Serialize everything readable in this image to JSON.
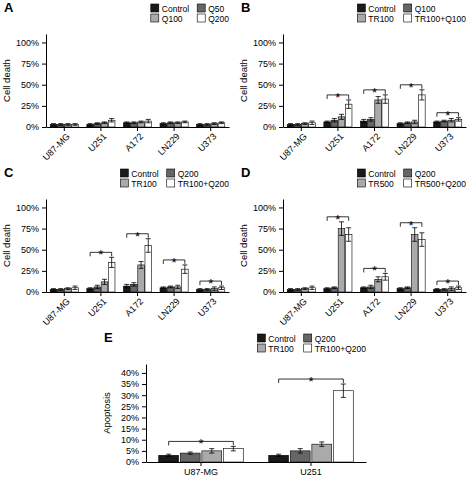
{
  "chart_data": [
    {
      "type": "bar",
      "title": "A",
      "ylabel": "Cell death",
      "categories": [
        "U87-MG",
        "U251",
        "A172",
        "LN229",
        "U373"
      ],
      "series": [
        {
          "name": "Control",
          "color": "#1a1a1a",
          "values": [
            3,
            3,
            5,
            4,
            3
          ],
          "errors": [
            1,
            1,
            1,
            1,
            1
          ]
        },
        {
          "name": "Q50",
          "color": "#666666",
          "values": [
            3,
            4,
            5,
            5,
            3
          ],
          "errors": [
            1,
            1,
            1,
            1,
            1
          ]
        },
        {
          "name": "Q100",
          "color": "#aaaaaa",
          "values": [
            3,
            5,
            6,
            5,
            4
          ],
          "errors": [
            1,
            1,
            1,
            1,
            1
          ]
        },
        {
          "name": "Q200",
          "color": "#ffffff",
          "values": [
            3,
            8,
            7,
            6,
            5
          ],
          "errors": [
            1,
            2,
            2,
            1,
            1
          ]
        }
      ],
      "ylim": [
        0,
        110
      ],
      "yticks": [
        {
          "value": 0,
          "label": "0%"
        },
        {
          "value": 25,
          "label": "25%"
        },
        {
          "value": 50,
          "label": "50%"
        },
        {
          "value": 75,
          "label": "75%"
        },
        {
          "value": 100,
          "label": "100%"
        }
      ],
      "grid": false,
      "legend": "upper right"
    },
    {
      "type": "bar",
      "title": "B",
      "ylabel": "Cell death",
      "categories": [
        "U87-MG",
        "U251",
        "A172",
        "LN229",
        "U373"
      ],
      "series": [
        {
          "name": "Control",
          "color": "#1a1a1a",
          "values": [
            3,
            6,
            7,
            4,
            6
          ],
          "errors": [
            1,
            1,
            2,
            1,
            1
          ]
        },
        {
          "name": "Q100",
          "color": "#666666",
          "values": [
            3,
            8,
            9,
            5,
            7
          ],
          "errors": [
            1,
            2,
            2,
            1,
            1
          ]
        },
        {
          "name": "TR100",
          "color": "#aaaaaa",
          "values": [
            4,
            12,
            32,
            6,
            8
          ],
          "errors": [
            1,
            3,
            4,
            2,
            2
          ]
        },
        {
          "name": "TR100+Q100",
          "color": "#ffffff",
          "values": [
            5,
            27,
            33,
            38,
            9
          ],
          "errors": [
            2,
            5,
            5,
            6,
            2
          ]
        }
      ],
      "ylim": [
        0,
        110
      ],
      "yticks": [
        {
          "value": 0,
          "label": "0%"
        },
        {
          "value": 25,
          "label": "25%"
        },
        {
          "value": 50,
          "label": "50%"
        },
        {
          "value": 75,
          "label": "75%"
        },
        {
          "value": 100,
          "label": "100%"
        }
      ],
      "grid": false,
      "legend": "upper right",
      "annotations": [
        {
          "text": "*",
          "category": "U251"
        },
        {
          "text": "*",
          "category": "A172"
        },
        {
          "text": "*",
          "category": "LN229"
        },
        {
          "text": "*",
          "category": "U373"
        }
      ]
    },
    {
      "type": "bar",
      "title": "C",
      "ylabel": "Cell death",
      "categories": [
        "U87-MG",
        "U251",
        "A172",
        "LN229",
        "U373"
      ],
      "series": [
        {
          "name": "Control",
          "color": "#1a1a1a",
          "values": [
            3,
            4,
            7,
            5,
            3
          ],
          "errors": [
            1,
            1,
            2,
            1,
            1
          ]
        },
        {
          "name": "Q200",
          "color": "#666666",
          "values": [
            3,
            6,
            9,
            6,
            3
          ],
          "errors": [
            1,
            2,
            2,
            1,
            1
          ]
        },
        {
          "name": "TR100",
          "color": "#aaaaaa",
          "values": [
            4,
            12,
            32,
            6,
            4
          ],
          "errors": [
            1,
            3,
            4,
            2,
            2
          ]
        },
        {
          "name": "TR100+Q200",
          "color": "#ffffff",
          "values": [
            5,
            35,
            55,
            27,
            5
          ],
          "errors": [
            2,
            6,
            8,
            5,
            2
          ]
        }
      ],
      "ylim": [
        0,
        110
      ],
      "yticks": [
        {
          "value": 0,
          "label": "0%"
        },
        {
          "value": 25,
          "label": "25%"
        },
        {
          "value": 50,
          "label": "50%"
        },
        {
          "value": 75,
          "label": "75%"
        },
        {
          "value": 100,
          "label": "100%"
        }
      ],
      "grid": false,
      "legend": "upper right",
      "annotations": [
        {
          "text": "*",
          "category": "U251"
        },
        {
          "text": "*",
          "category": "A172"
        },
        {
          "text": "*",
          "category": "LN229"
        },
        {
          "text": "*",
          "category": "U373"
        }
      ]
    },
    {
      "type": "bar",
      "title": "D",
      "ylabel": "Cell death",
      "categories": [
        "U87-MG",
        "U251",
        "A172",
        "LN229",
        "U373"
      ],
      "series": [
        {
          "name": "Control",
          "color": "#1a1a1a",
          "values": [
            3,
            4,
            5,
            4,
            3
          ],
          "errors": [
            1,
            1,
            1,
            1,
            1
          ]
        },
        {
          "name": "Q200",
          "color": "#666666",
          "values": [
            3,
            5,
            6,
            5,
            3
          ],
          "errors": [
            1,
            1,
            2,
            1,
            1
          ]
        },
        {
          "name": "TR500",
          "color": "#aaaaaa",
          "values": [
            4,
            75,
            15,
            68,
            4
          ],
          "errors": [
            1,
            8,
            3,
            8,
            2
          ]
        },
        {
          "name": "TR500+Q200",
          "color": "#ffffff",
          "values": [
            5,
            68,
            18,
            62,
            5
          ],
          "errors": [
            2,
            8,
            4,
            8,
            2
          ]
        }
      ],
      "ylim": [
        0,
        110
      ],
      "yticks": [
        {
          "value": 0,
          "label": "0%"
        },
        {
          "value": 25,
          "label": "25%"
        },
        {
          "value": 50,
          "label": "50%"
        },
        {
          "value": 75,
          "label": "75%"
        },
        {
          "value": 100,
          "label": "100%"
        }
      ],
      "grid": false,
      "legend": "upper right",
      "annotations": [
        {
          "text": "*",
          "category": "U251"
        },
        {
          "text": "*",
          "category": "A172"
        },
        {
          "text": "*",
          "category": "LN229"
        },
        {
          "text": "*",
          "category": "U373"
        }
      ]
    },
    {
      "type": "bar",
      "title": "E",
      "ylabel": "Apoptosis",
      "categories": [
        "U87-MG",
        "U251"
      ],
      "series": [
        {
          "name": "Control",
          "color": "#1a1a1a",
          "values": [
            3,
            3
          ],
          "errors": [
            0.5,
            0.5
          ]
        },
        {
          "name": "Q200",
          "color": "#666666",
          "values": [
            4,
            5
          ],
          "errors": [
            0.5,
            1
          ]
        },
        {
          "name": "TR100",
          "color": "#aaaaaa",
          "values": [
            5,
            8
          ],
          "errors": [
            1,
            1
          ]
        },
        {
          "name": "TR100+Q200",
          "color": "#ffffff",
          "values": [
            6,
            32
          ],
          "errors": [
            1,
            3
          ]
        }
      ],
      "ylim": [
        0,
        44
      ],
      "yticks": [
        {
          "value": 0,
          "label": "0%"
        },
        {
          "value": 5,
          "label": "5%"
        },
        {
          "value": 10,
          "label": "10%"
        },
        {
          "value": 15,
          "label": "15%"
        },
        {
          "value": 20,
          "label": "20%"
        },
        {
          "value": 25,
          "label": "25%"
        },
        {
          "value": 30,
          "label": "30%"
        },
        {
          "value": 35,
          "label": "35%"
        },
        {
          "value": 40,
          "label": "40%"
        }
      ],
      "grid": false,
      "legend": "upper right",
      "annotations": [
        {
          "text": "*",
          "category": "U87-MG"
        },
        {
          "text": "*",
          "category": "U251"
        }
      ]
    }
  ]
}
